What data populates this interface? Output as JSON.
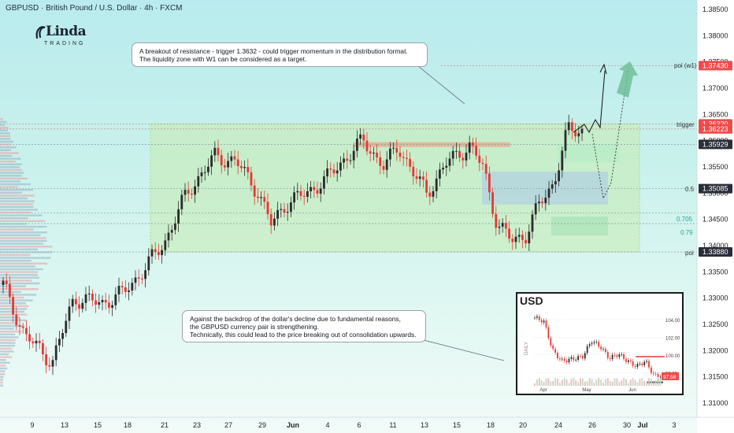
{
  "header": {
    "title": "GBPUSD · British Pound / U.S. Dollar · 4h · FXCM"
  },
  "logo": {
    "main": "Linda",
    "sub": "TRADING"
  },
  "annotations": [
    {
      "lines": [
        "A breakout of resistance - trigger 1.3632 - could trigger momentum in the distribution format.",
        "The liquidity zone with W1 can be considered as a target."
      ]
    },
    {
      "lines": [
        "Against the backdrop of the dollar's decline due to fundamental reasons,",
        "the GBPUSD currency pair is strengthening.",
        "Technically, this could lead to the price breaking out of consolidation upwards."
      ]
    }
  ],
  "chart_data": {
    "type": "candlestick",
    "title": "GBPUSD · British Pound / U.S. Dollar · 4h · FXCM",
    "y_axis": {
      "range": [
        1.3075,
        1.3875
      ],
      "ticks": [
        1.385,
        1.38,
        1.375,
        1.37,
        1.365,
        1.36,
        1.355,
        1.35,
        1.345,
        1.34,
        1.335,
        1.33,
        1.325,
        1.32,
        1.315,
        1.31
      ]
    },
    "x_axis": {
      "tick_labels": [
        "9",
        "13",
        "15",
        "18",
        "21",
        "23",
        "27",
        "29",
        "Jun",
        "4",
        "6",
        "11",
        "13",
        "15",
        "18",
        "20",
        "24",
        "26",
        "30",
        "Jul",
        "3"
      ]
    },
    "levels": [
      {
        "name": "poi (w1)",
        "value": 1.3743,
        "label": "1.37430",
        "color": "#e53935"
      },
      {
        "name": "",
        "value": 1.3632,
        "label": "1.36320",
        "color": "#e53935"
      },
      {
        "name": "trigger",
        "value": 1.36223,
        "label": "1.36223",
        "color": "#e53935"
      },
      {
        "name": "",
        "value": 1.35929,
        "label": "1.35929",
        "color": "#222222"
      },
      {
        "name": "0.5",
        "value": 1.35085,
        "label": "1.35085",
        "color": "#222222"
      },
      {
        "name": "0.705",
        "value": 1.3462,
        "label": "",
        "color": "#26a69a"
      },
      {
        "name": "0.79",
        "value": 1.3442,
        "label": "",
        "color": "#26a69a"
      },
      {
        "name": "poi",
        "value": 1.3388,
        "label": "1.33880",
        "color": "#222222"
      }
    ],
    "level_tags": [
      "poi (w1)",
      "trigger",
      "0.5",
      "0.705",
      "0.79",
      "poi"
    ],
    "range_box": {
      "top": 1.3632,
      "bottom": 1.3388,
      "x_start_label": "21"
    },
    "price_series": {
      "anchors": [
        [
          0,
          1.3325
        ],
        [
          3,
          1.323
        ],
        [
          7,
          1.3178
        ],
        [
          10,
          1.33
        ],
        [
          14,
          1.329
        ],
        [
          17,
          1.331
        ],
        [
          20,
          1.3355
        ],
        [
          23,
          1.341
        ],
        [
          26,
          1.35
        ],
        [
          30,
          1.357
        ],
        [
          33,
          1.356
        ],
        [
          36,
          1.3505
        ],
        [
          38,
          1.344
        ],
        [
          40,
          1.348
        ],
        [
          43,
          1.35
        ],
        [
          46,
          1.353
        ],
        [
          48,
          1.356
        ],
        [
          51,
          1.36
        ],
        [
          54,
          1.355
        ],
        [
          56,
          1.359
        ],
        [
          58,
          1.354
        ],
        [
          60,
          1.35
        ],
        [
          63,
          1.356
        ],
        [
          66,
          1.359
        ],
        [
          68,
          1.355
        ],
        [
          70,
          1.344
        ],
        [
          72,
          1.341
        ],
        [
          74,
          1.342
        ],
        [
          76,
          1.348
        ],
        [
          78,
          1.352
        ],
        [
          80,
          1.362
        ],
        [
          82,
          1.362
        ]
      ]
    },
    "inset": {
      "title": "USD",
      "type": "candlestick",
      "y_ticks": [
        104.0,
        102.0,
        100.0,
        98.0
      ],
      "y_range": [
        96.5,
        105.0
      ],
      "x_labels": [
        "Apr",
        "May",
        "Jun"
      ],
      "last_price": "97.58",
      "resistance": 99.8,
      "side_label": "DAILY",
      "anchors": [
        [
          0,
          104.2
        ],
        [
          3,
          103.8
        ],
        [
          6,
          100.5
        ],
        [
          9,
          99.3
        ],
        [
          12,
          99.5
        ],
        [
          16,
          99.8
        ],
        [
          19,
          101.6
        ],
        [
          22,
          100.9
        ],
        [
          25,
          99.6
        ],
        [
          28,
          100.1
        ],
        [
          31,
          99.3
        ],
        [
          34,
          98.7
        ],
        [
          37,
          99.3
        ],
        [
          40,
          97.6
        ],
        [
          42,
          97.7
        ]
      ]
    }
  }
}
